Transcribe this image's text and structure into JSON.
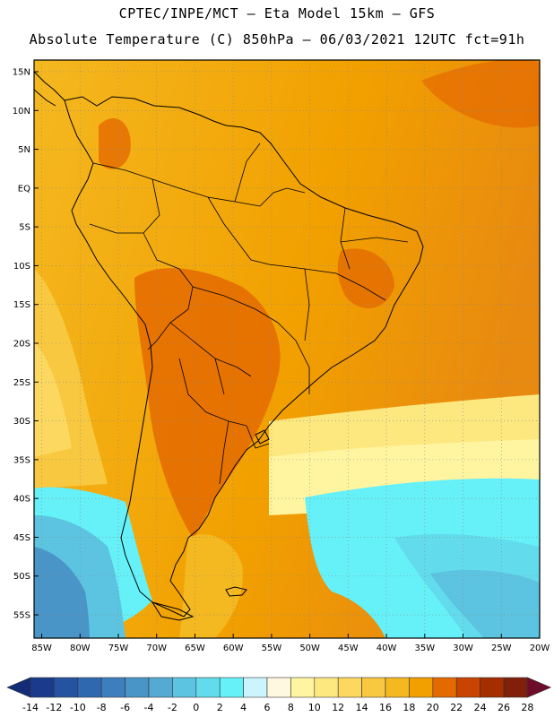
{
  "header": {
    "line1": "CPTEC/INPE/MCT –  Eta Model 15km – GFS",
    "line2": "Absolute Temperature (C) 850hPa – 06/03/2021 12UTC fct=91h"
  },
  "map": {
    "lat_labels": [
      "15N",
      "10N",
      "5N",
      "EQ",
      "5S",
      "10S",
      "15S",
      "20S",
      "25S",
      "30S",
      "35S",
      "40S",
      "45S",
      "50S",
      "55S"
    ],
    "lon_labels": [
      "85W",
      "80W",
      "75W",
      "70W",
      "65W",
      "60W",
      "55W",
      "50W",
      "45W",
      "40W",
      "35W",
      "30W",
      "25W",
      "20W"
    ],
    "lat_range": [
      -58,
      16.5
    ],
    "lon_range": [
      -86,
      -20
    ]
  },
  "colorbar": {
    "labels": [
      "-14",
      "-12",
      "-10",
      "-8",
      "-6",
      "-4",
      "-2",
      "0",
      "2",
      "4",
      "6",
      "8",
      "10",
      "12",
      "14",
      "16",
      "18",
      "20",
      "22",
      "24",
      "26",
      "28"
    ],
    "colors": [
      "#1a3a8c",
      "#2553a0",
      "#3068b0",
      "#3d7fbe",
      "#4a95c8",
      "#55aad2",
      "#5cc4e0",
      "#62dcec",
      "#66f0f8",
      "#ccf4fc",
      "#fff8e0",
      "#fff5a0",
      "#fde880",
      "#fcd860",
      "#f8c840",
      "#f4b820",
      "#f2a000",
      "#e46a00",
      "#c84400",
      "#a42e00",
      "#80200a"
    ],
    "under_color": "#142c78",
    "over_color": "#6e0c2c"
  }
}
